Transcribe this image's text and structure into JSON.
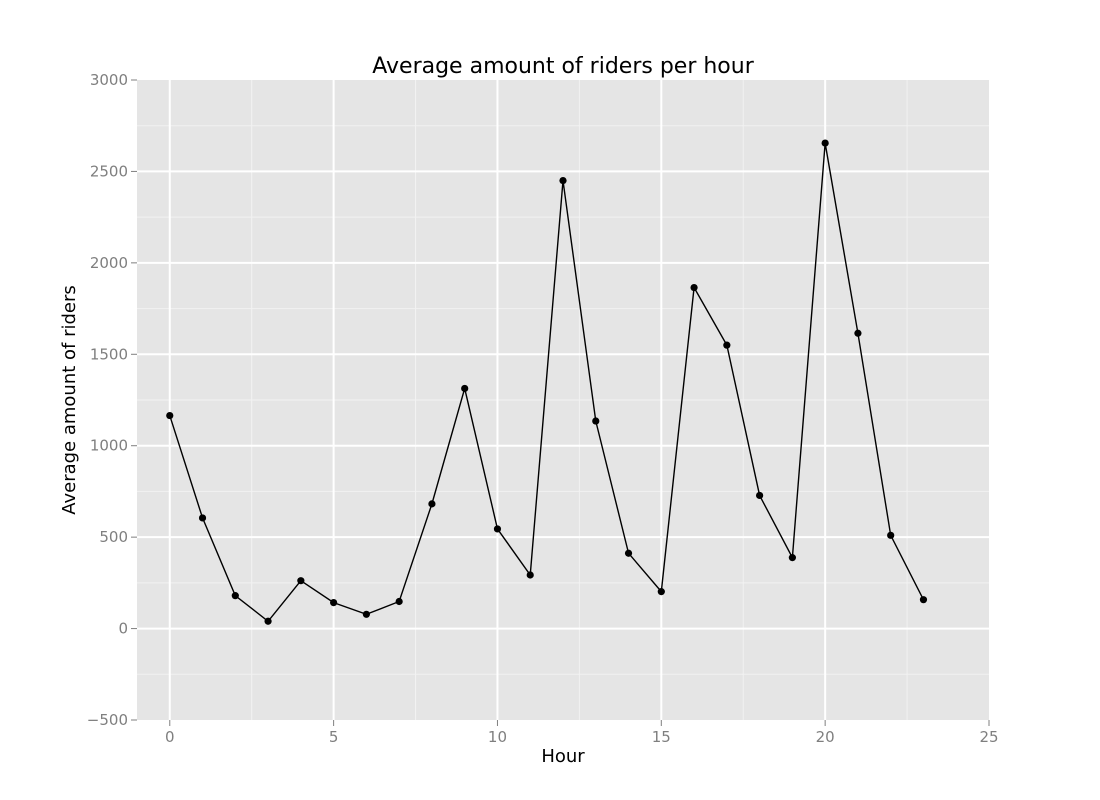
{
  "chart_data": {
    "type": "line",
    "title": "Average amount of riders per hour",
    "xlabel": "Hour",
    "ylabel": "Average amount of riders",
    "xlim": [
      -1,
      25
    ],
    "ylim": [
      -500,
      3000
    ],
    "xticks": [
      0,
      5,
      10,
      15,
      20,
      25
    ],
    "yticks": [
      -500,
      0,
      500,
      1000,
      1500,
      2000,
      2500,
      3000
    ],
    "xtick_labels": [
      "0",
      "5",
      "10",
      "15",
      "20",
      "25"
    ],
    "ytick_labels": [
      "−500",
      "0",
      "500",
      "1000",
      "1500",
      "2000",
      "2500",
      "3000"
    ],
    "grid": true,
    "colors": {
      "panel": "#e5e5e5",
      "grid_major": "#ffffff",
      "grid_minor": "#f2f2f2",
      "line": "#000000",
      "point": "#000000"
    },
    "series": [
      {
        "x": [
          0,
          1,
          2,
          3,
          4,
          5,
          6,
          7,
          8,
          9,
          10,
          11,
          12,
          13,
          14,
          15,
          16,
          17,
          18,
          19,
          20,
          21,
          22,
          23
        ],
        "values": [
          1165,
          605,
          180,
          40,
          262,
          142,
          78,
          148,
          682,
          1313,
          545,
          293,
          2450,
          1135,
          412,
          202,
          1865,
          1550,
          728,
          388,
          2655,
          1615,
          510,
          158
        ]
      }
    ]
  }
}
